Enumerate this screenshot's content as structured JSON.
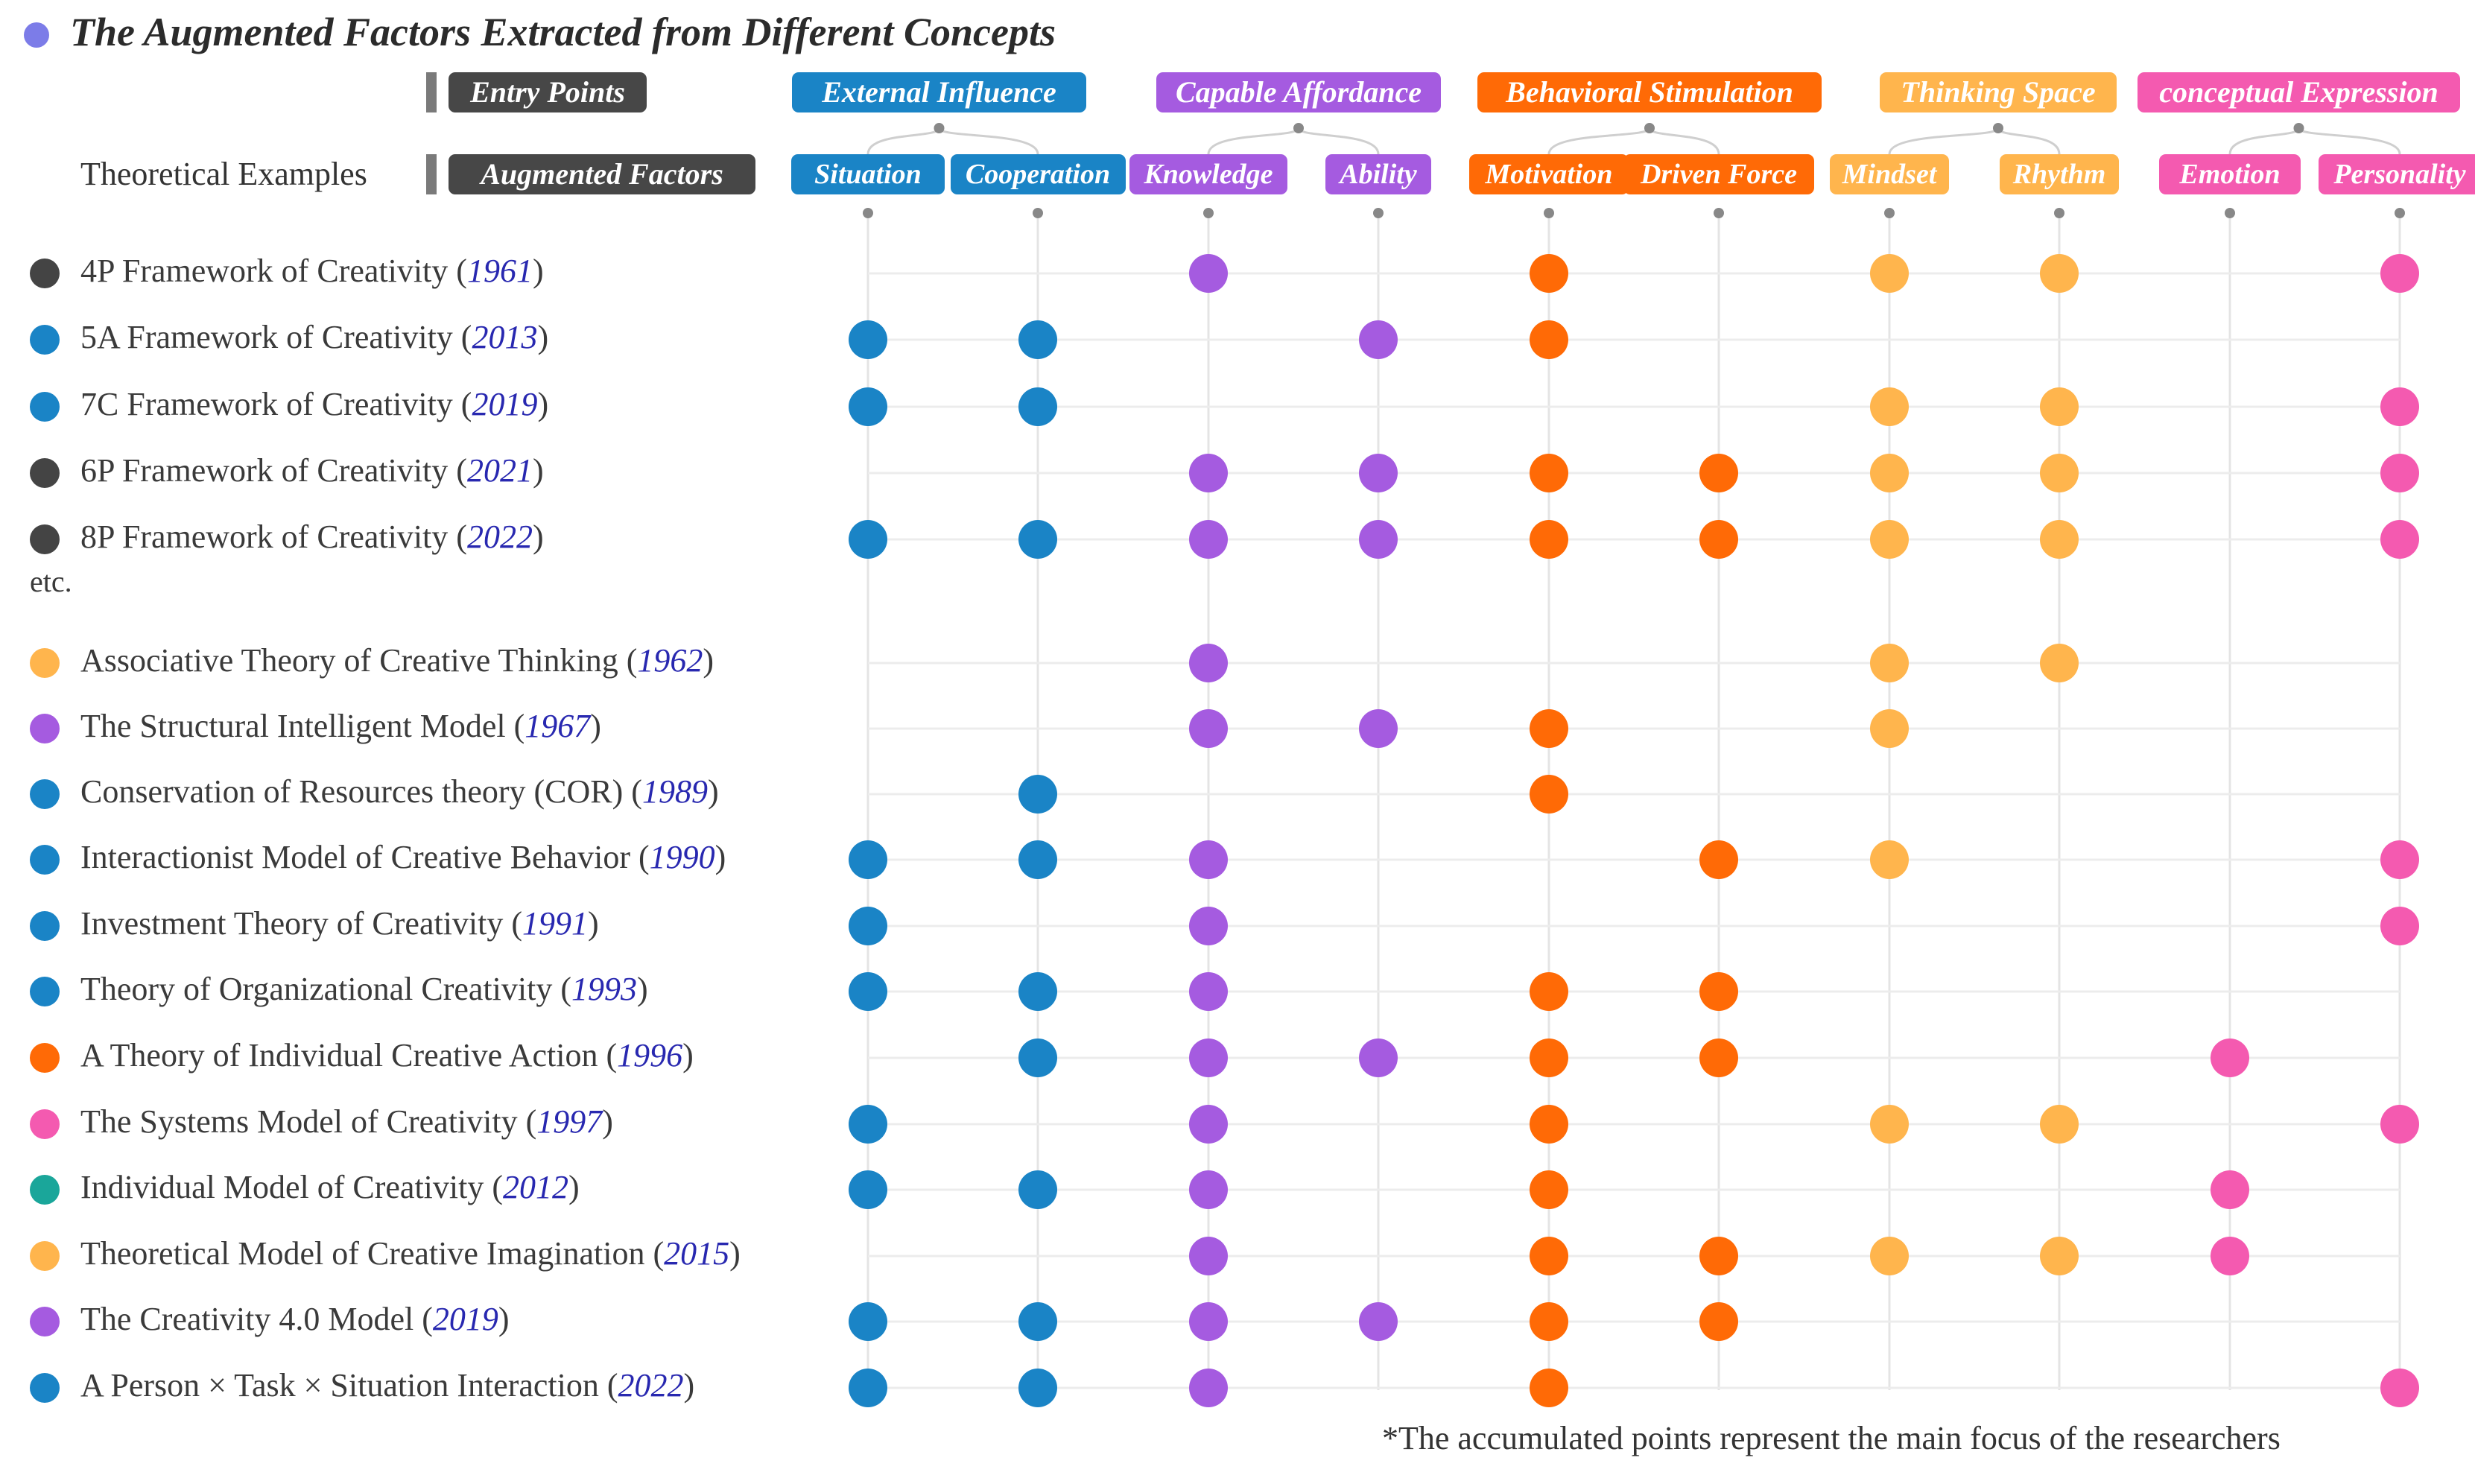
{
  "chart_data": {
    "type": "scatter",
    "title": "The Augmented Factors Extracted from Different Concepts",
    "entry_points_label": "Entry Points",
    "augmented_factors_label": "Augmented Factors",
    "theoretical_examples_label": "Theoretical Examples",
    "etc_label": "etc.",
    "footnote": "*The accumulated points represent the main focus of the researchers",
    "colors": {
      "external": "#1a84c6",
      "capable": "#a55be0",
      "behavioral": "#ff6a06",
      "thinking": "#ffb54d",
      "expression": "#f45ab0",
      "framework": "#444444",
      "teal": "#1aa69a",
      "title_dot": "#7c7ce8",
      "header_dark": "#474747"
    },
    "groups": [
      {
        "label": "External Influence",
        "color_key": "external"
      },
      {
        "label": "Capable Affordance",
        "color_key": "capable"
      },
      {
        "label": "Behavioral Stimulation",
        "color_key": "behavioral"
      },
      {
        "label": "Thinking Space",
        "color_key": "thinking"
      },
      {
        "label": "conceptual Expression",
        "color_key": "expression"
      }
    ],
    "factors": [
      {
        "label": "Situation",
        "color_key": "external"
      },
      {
        "label": "Cooperation",
        "color_key": "external"
      },
      {
        "label": "Knowledge",
        "color_key": "capable"
      },
      {
        "label": "Ability",
        "color_key": "capable"
      },
      {
        "label": "Motivation",
        "color_key": "behavioral"
      },
      {
        "label": "Driven Force",
        "color_key": "behavioral"
      },
      {
        "label": "Mindset",
        "color_key": "thinking"
      },
      {
        "label": "Rhythm",
        "color_key": "thinking"
      },
      {
        "label": "Emotion",
        "color_key": "expression"
      },
      {
        "label": "Personality",
        "color_key": "expression"
      }
    ],
    "rows": [
      {
        "name": "4P Framework of Creativity",
        "year": "1961",
        "color_key": "framework",
        "points": [
          2,
          4,
          6,
          7,
          9
        ]
      },
      {
        "name": "5A Framework of Creativity",
        "year": "2013",
        "color_key": "external",
        "points": [
          0,
          1,
          3,
          4
        ]
      },
      {
        "name": "7C Framework of Creativity",
        "year": "2019",
        "color_key": "external",
        "points": [
          0,
          1,
          6,
          7,
          9
        ]
      },
      {
        "name": "6P Framework of Creativity  ",
        "year": "2021",
        "color_key": "framework",
        "points": [
          2,
          3,
          4,
          5,
          6,
          7,
          9
        ]
      },
      {
        "name": "8P Framework of Creativity",
        "year": "2022",
        "color_key": "framework",
        "points": [
          0,
          1,
          2,
          3,
          4,
          5,
          6,
          7,
          9
        ]
      },
      {
        "name": "Associative Theory of Creative Thinking",
        "year": "1962",
        "color_key": "thinking",
        "points": [
          2,
          6,
          7
        ]
      },
      {
        "name": "The Structural Intelligent Model",
        "year": "1967",
        "color_key": "capable",
        "points": [
          2,
          3,
          4,
          6
        ]
      },
      {
        "name": "Conservation of Resources theory (COR)",
        "year": "1989",
        "color_key": "external",
        "points": [
          1,
          4
        ]
      },
      {
        "name": "Interactionist Model of Creative Behavior",
        "year": "1990",
        "color_key": "external",
        "points": [
          0,
          1,
          2,
          5,
          6,
          9
        ]
      },
      {
        "name": "Investment Theory of Creativity",
        "year": "1991",
        "color_key": "external",
        "points": [
          0,
          2,
          9
        ]
      },
      {
        "name": "Theory of Organizational Creativity",
        "year": "1993",
        "color_key": "external",
        "points": [
          0,
          1,
          2,
          4,
          5
        ]
      },
      {
        "name": "A Theory of Individual Creative Action",
        "year": "1996",
        "color_key": "behavioral",
        "points": [
          1,
          2,
          3,
          4,
          5,
          8
        ]
      },
      {
        "name": "The Systems Model of Creativity",
        "year": "1997",
        "color_key": "expression",
        "points": [
          0,
          2,
          4,
          6,
          7,
          9
        ]
      },
      {
        "name": "Individual Model of Creativity",
        "year": "2012",
        "color_key": "teal",
        "points": [
          0,
          1,
          2,
          4,
          8
        ]
      },
      {
        "name": "Theoretical Model of Creative Imagination",
        "year": "2015",
        "color_key": "thinking",
        "points": [
          2,
          4,
          5,
          6,
          7,
          8
        ]
      },
      {
        "name": "The Creativity 4.0 Model",
        "year": "2019",
        "color_key": "capable",
        "points": [
          0,
          1,
          2,
          3,
          4,
          5
        ]
      },
      {
        "name": "A Person × Task × Situation Interaction",
        "year": "2022",
        "color_key": "external",
        "points": [
          0,
          1,
          2,
          4,
          9
        ]
      }
    ]
  }
}
